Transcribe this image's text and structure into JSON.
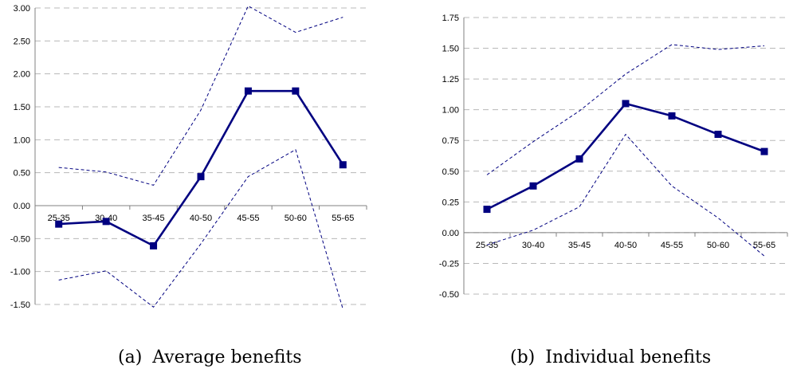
{
  "chart_data": [
    {
      "type": "line",
      "categories": [
        "25-35",
        "30-40",
        "35-45",
        "40-50",
        "45-55",
        "50-60",
        "55-65"
      ],
      "series": [
        {
          "values": [
            -0.28,
            -0.24,
            -0.61,
            0.44,
            1.74,
            1.74,
            0.62
          ],
          "style": "solid-square-markers"
        },
        {
          "values": [
            0.58,
            0.51,
            0.31,
            1.45,
            3.03,
            2.63,
            2.86
          ],
          "style": "dashed"
        },
        {
          "values": [
            -1.13,
            -0.99,
            -1.54,
            -0.58,
            0.44,
            0.85,
            -1.57
          ],
          "style": "dashed"
        }
      ],
      "yticks": [
        "3.00",
        "2.50",
        "2.00",
        "1.50",
        "1.00",
        "0.50",
        "0.00",
        "-0.50",
        "-1.00",
        "-1.50"
      ],
      "ylim": [
        -1.5,
        3.0
      ],
      "grid": true,
      "caption_label": "(a)",
      "caption_text": "Average benefits"
    },
    {
      "type": "line",
      "categories": [
        "25-35",
        "30-40",
        "35-45",
        "40-50",
        "45-55",
        "50-60",
        "55-65"
      ],
      "series": [
        {
          "values": [
            0.19,
            0.38,
            0.6,
            1.05,
            0.95,
            0.8,
            0.66
          ],
          "style": "solid-square-markers"
        },
        {
          "values": [
            0.47,
            0.74,
            0.99,
            1.29,
            1.53,
            1.49,
            1.52
          ],
          "style": "dashed"
        },
        {
          "values": [
            -0.1,
            0.02,
            0.21,
            0.8,
            0.38,
            0.12,
            -0.19
          ],
          "style": "dashed"
        }
      ],
      "yticks": [
        "1.75",
        "1.50",
        "1.25",
        "1.00",
        "0.75",
        "0.50",
        "0.25",
        "0.00",
        "-0.25",
        "-0.50"
      ],
      "ylim": [
        -0.5,
        1.75
      ],
      "grid": true,
      "caption_label": "(b)",
      "caption_text": "Individual benefits"
    }
  ],
  "colors": {
    "series": "#000080",
    "grid": "#b8b8b8",
    "axis": "#808080"
  }
}
